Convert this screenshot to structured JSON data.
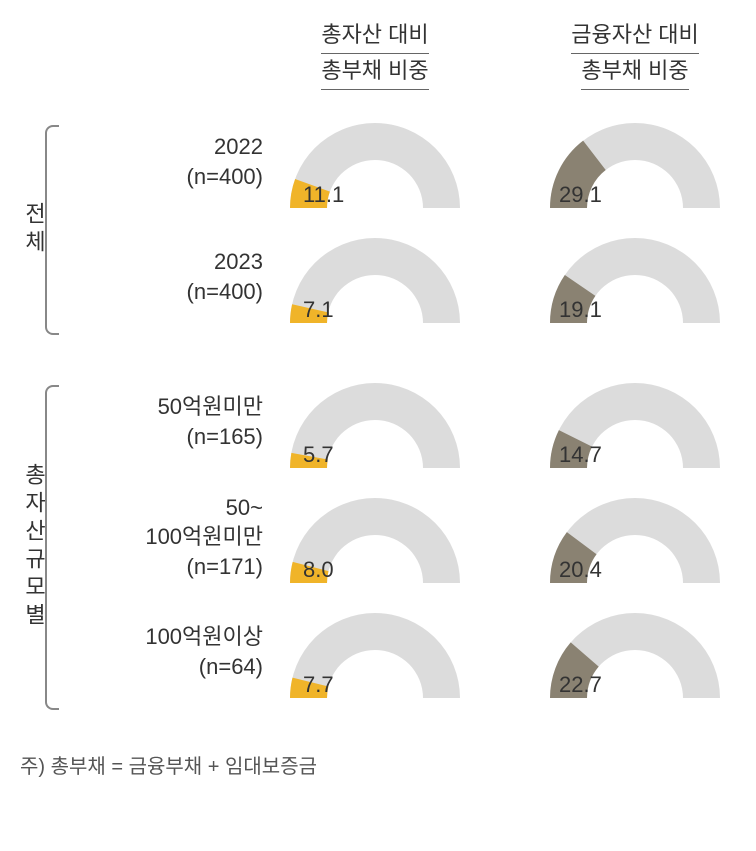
{
  "headers": {
    "col1_line1": "총자산 대비",
    "col1_line2": "총부채 비중",
    "col2_line1": "금융자산 대비",
    "col2_line2": "총부채 비중"
  },
  "colors": {
    "gauge_bg": "#dcdcdc",
    "col1_fill": "#f0b429",
    "col2_fill": "#8a8272",
    "text": "#333333",
    "background": "#ffffff"
  },
  "gauge": {
    "outer_radius": 85,
    "inner_radius": 48,
    "width": 180,
    "height": 95,
    "max_value": 100,
    "value_fontsize": 22
  },
  "groups": [
    {
      "label": "전체",
      "rows": [
        {
          "label_line1": "2022",
          "label_line2": "(n=400)",
          "col1": {
            "value": 11.1,
            "display": "11.1"
          },
          "col2": {
            "value": 29.1,
            "display": "29.1"
          }
        },
        {
          "label_line1": "2023",
          "label_line2": "(n=400)",
          "col1": {
            "value": 7.1,
            "display": "7.1"
          },
          "col2": {
            "value": 19.1,
            "display": "19.1"
          }
        }
      ]
    },
    {
      "label": "총자산규모별",
      "rows": [
        {
          "label_line1": "50억원미만",
          "label_line2": "(n=165)",
          "col1": {
            "value": 5.7,
            "display": "5.7"
          },
          "col2": {
            "value": 14.7,
            "display": "14.7"
          }
        },
        {
          "label_line1": "50~",
          "label_line2": "100억원미만",
          "label_line3": "(n=171)",
          "col1": {
            "value": 8.0,
            "display": "8.0"
          },
          "col2": {
            "value": 20.4,
            "display": "20.4"
          }
        },
        {
          "label_line1": "100억원이상",
          "label_line2": "(n=64)",
          "col1": {
            "value": 7.7,
            "display": "7.7"
          },
          "col2": {
            "value": 22.7,
            "display": "22.7"
          }
        }
      ]
    }
  ],
  "footnote": "주) 총부채 = 금융부채 + 임대보증금"
}
